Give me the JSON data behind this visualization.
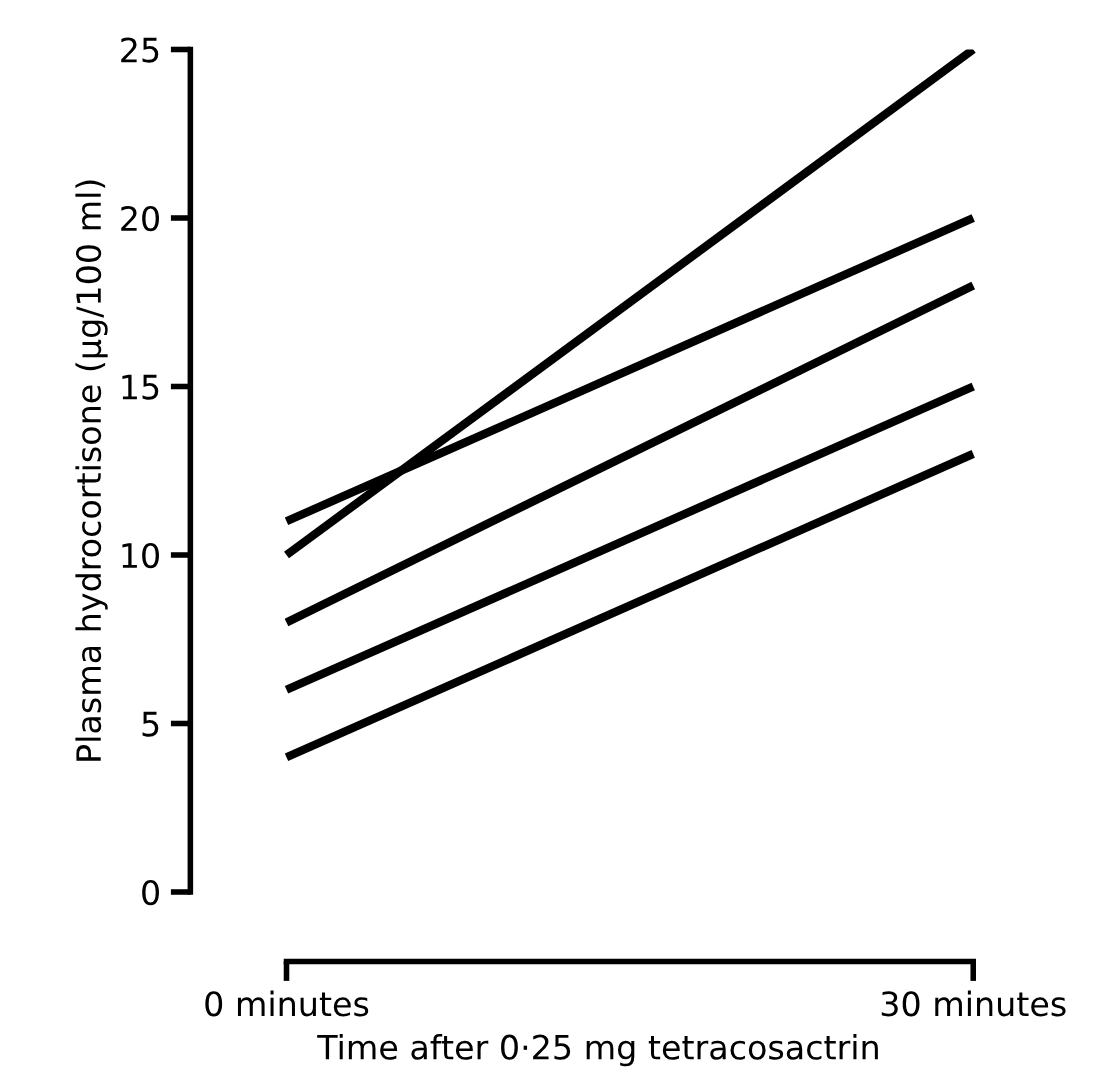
{
  "chart_data": {
    "type": "line",
    "xlabel": "Time after 0·25 mg tetracosactrin",
    "ylabel": "Plasma hydrocortisone (µg/100 ml)",
    "categories": [
      "0 minutes",
      "30 minutes"
    ],
    "series": [
      {
        "color": "#000000",
        "values": [
          10,
          25
        ]
      },
      {
        "color": "#000000",
        "values": [
          11,
          20
        ]
      },
      {
        "color": "#000000",
        "values": [
          8,
          18
        ]
      },
      {
        "color": "#000000",
        "values": [
          6,
          15
        ]
      },
      {
        "color": "#000000",
        "values": [
          4,
          13
        ]
      }
    ],
    "ylim": [
      0,
      25
    ],
    "yticks": [
      0,
      5,
      10,
      15,
      20,
      25
    ],
    "grid": false,
    "marker": "none",
    "line_style": "solid"
  }
}
